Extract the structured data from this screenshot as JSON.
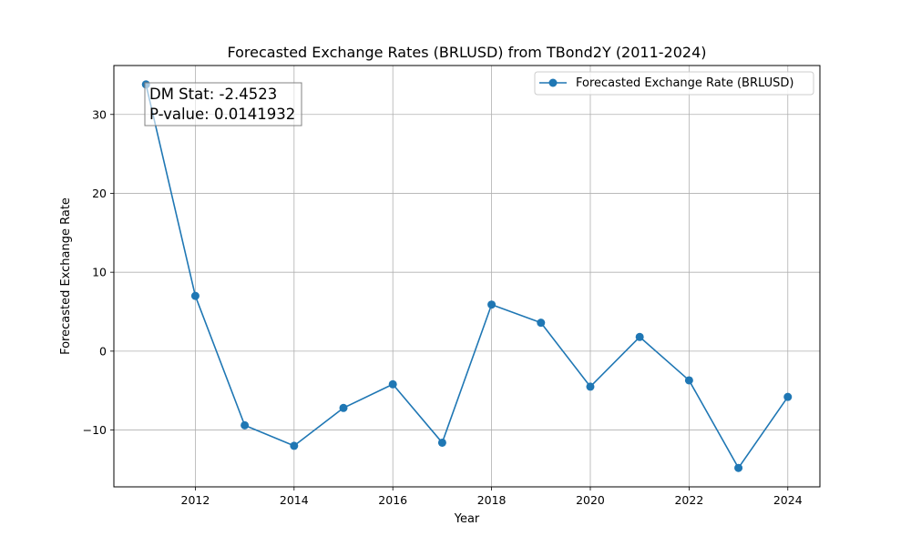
{
  "chart_data": {
    "type": "line",
    "title": "Forecasted Exchange Rates (BRLUSD) from TBond2Y (2011-2024)",
    "xlabel": "Year",
    "ylabel": "Forecasted Exchange Rate",
    "x": [
      2011,
      2012,
      2013,
      2014,
      2015,
      2016,
      2017,
      2018,
      2019,
      2020,
      2021,
      2022,
      2023,
      2024
    ],
    "series": [
      {
        "name": "Forecasted Exchange Rate (BRLUSD)",
        "color": "#1f77b4",
        "values": [
          33.8,
          7.0,
          -9.4,
          -12.0,
          -7.2,
          -4.2,
          -11.6,
          5.9,
          3.6,
          -4.5,
          1.8,
          -3.7,
          -14.8,
          -5.8
        ]
      }
    ],
    "xlim": [
      2010.35,
      2024.65
    ],
    "ylim": [
      -17.2,
      36.2
    ],
    "xticks": [
      2012,
      2014,
      2016,
      2018,
      2020,
      2022,
      2024
    ],
    "yticks": [
      -10,
      0,
      10,
      20,
      30
    ],
    "grid": true,
    "legend_position": "top-right",
    "annotation": {
      "line1": "DM Stat: -2.4523",
      "line2": "P-value: 0.0141932"
    }
  }
}
